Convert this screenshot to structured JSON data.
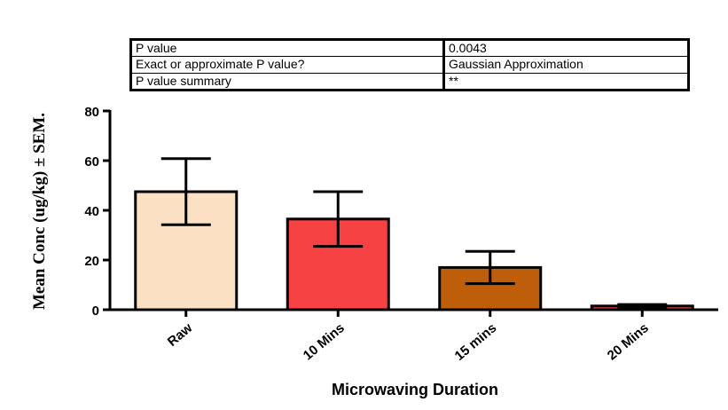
{
  "stats_table": {
    "rows": [
      {
        "label": "P value",
        "value": "0.0043"
      },
      {
        "label": "Exact or approximate P value?",
        "value": "Gaussian Approximation"
      },
      {
        "label": "P value summary",
        "value": "**"
      }
    ]
  },
  "chart_data": {
    "type": "bar",
    "categories": [
      "Raw",
      "10 Mins",
      "15 mins",
      "20 Mins"
    ],
    "values": [
      47.5,
      36.5,
      17,
      1.5
    ],
    "errors": [
      13.3,
      11,
      6.5,
      0.6
    ],
    "colors": [
      "#FCE0C4",
      "#F74244",
      "#BF5E0A",
      "#E33E3E"
    ],
    "ylabel": "Mean Conc (ug/kg) ± SEM.",
    "xlabel": "Microwaving Duration",
    "ylim": [
      0,
      80
    ],
    "yticks": [
      "0",
      "20",
      "40",
      "60",
      "80"
    ],
    "grid": false
  }
}
